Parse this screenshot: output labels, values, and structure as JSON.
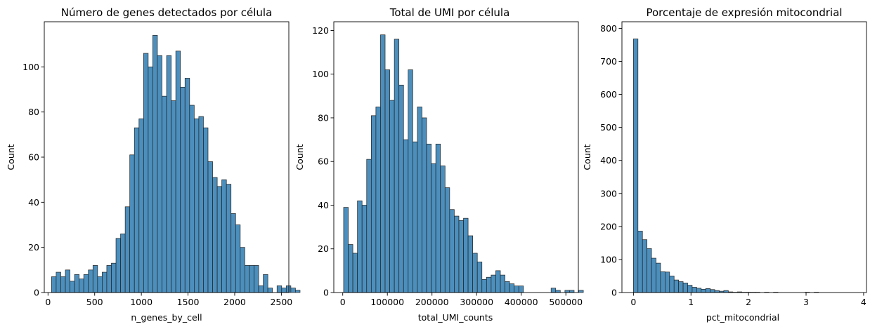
{
  "colors": {
    "bar_fill": "#4c8fbd",
    "bar_edge": "#222222",
    "axis": "#000000",
    "background": "#ffffff"
  },
  "chart_data": [
    {
      "type": "bar",
      "title": "Número de genes detectados por célula",
      "xlabel": "n_genes_by_cell",
      "ylabel": "Count",
      "grid": false,
      "xlim": [
        -40,
        2580
      ],
      "ylim": [
        0,
        120
      ],
      "xticks": [
        0,
        500,
        1000,
        1500,
        2000,
        2500
      ],
      "yticks": [
        0,
        20,
        40,
        60,
        80,
        100
      ],
      "bin_start": 38,
      "bin_width": 49.3,
      "values": [
        7,
        9,
        7,
        10,
        5,
        8,
        6,
        8,
        10,
        12,
        7,
        9,
        12,
        13,
        24,
        26,
        38,
        61,
        73,
        77,
        106,
        100,
        114,
        105,
        87,
        105,
        85,
        107,
        91,
        95,
        83,
        77,
        78,
        73,
        58,
        51,
        47,
        50,
        48,
        35,
        30,
        20,
        12,
        12,
        12,
        3,
        8,
        2,
        0,
        3,
        2,
        3,
        2,
        1
      ]
    },
    {
      "type": "bar",
      "title": "Total de UMI por célula",
      "xlabel": "total_UMI_counts",
      "ylabel": "Count",
      "grid": false,
      "xlim": [
        -20000,
        528000
      ],
      "ylim": [
        0,
        124
      ],
      "xticks": [
        0,
        100000,
        200000,
        300000,
        400000,
        500000
      ],
      "yticks": [
        0,
        20,
        40,
        60,
        80,
        100,
        120
      ],
      "bin_start": 2000,
      "bin_width": 10330,
      "values": [
        39,
        22,
        18,
        42,
        40,
        61,
        81,
        85,
        118,
        102,
        88,
        116,
        95,
        70,
        102,
        69,
        85,
        80,
        68,
        59,
        68,
        58,
        48,
        38,
        35,
        33,
        34,
        26,
        18,
        14,
        6,
        7,
        8,
        10,
        8,
        5,
        4,
        3,
        3,
        0,
        0,
        0,
        0,
        0,
        0,
        2,
        1,
        0,
        1,
        1,
        0,
        1
      ]
    },
    {
      "type": "bar",
      "title": "Porcentaje de expresión mitocondrial",
      "xlabel": "pct_mitocondrial",
      "ylabel": "Count",
      "grid": false,
      "xlim": [
        -0.2,
        4.05
      ],
      "ylim": [
        0,
        820
      ],
      "xticks": [
        0,
        1,
        2,
        3,
        4
      ],
      "yticks": [
        0,
        100,
        200,
        300,
        400,
        500,
        600,
        700,
        800
      ],
      "bin_start": 0.0,
      "bin_width": 0.0785,
      "values": [
        768,
        186,
        160,
        133,
        104,
        89,
        63,
        62,
        50,
        38,
        33,
        29,
        22,
        16,
        13,
        10,
        12,
        9,
        6,
        4,
        6,
        2,
        1,
        2,
        1,
        1,
        1,
        1,
        0,
        1,
        0,
        1,
        0,
        0,
        0,
        0,
        0,
        0,
        1,
        0,
        1,
        0,
        0,
        0,
        0,
        0,
        0,
        0,
        0,
        0,
        0,
        0,
        0,
        1
      ]
    }
  ]
}
